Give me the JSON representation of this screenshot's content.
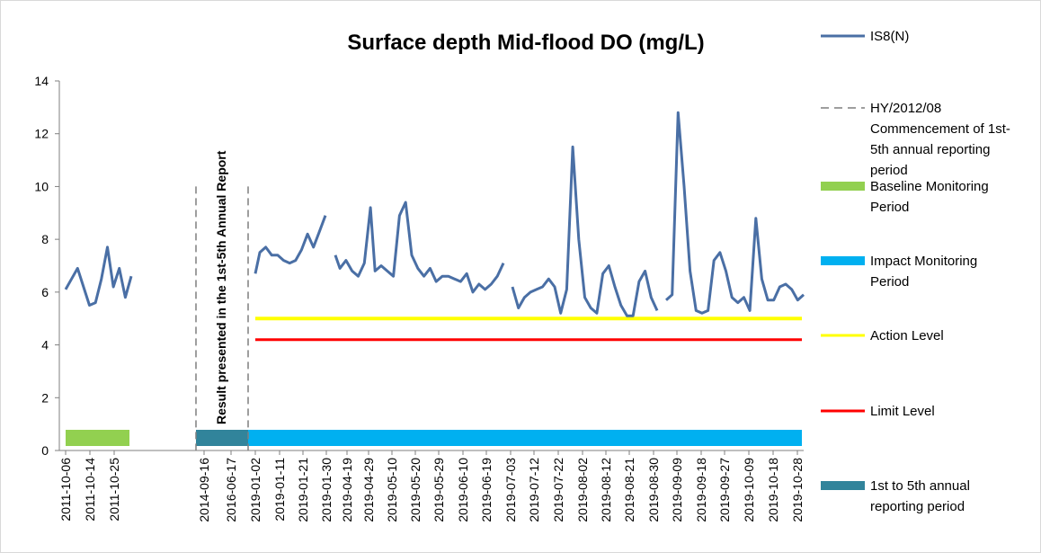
{
  "chart_data": {
    "type": "line",
    "title": "Surface depth Mid-flood DO (mg/L)",
    "xlabel": "",
    "ylabel": "",
    "ylim": [
      0,
      14
    ],
    "yticks": [
      0,
      2,
      4,
      6,
      8,
      10,
      12,
      14
    ],
    "categories": [
      "2011-10-06",
      "2011-10-14",
      "2011-10-25",
      "2014-09-16",
      "2016-06-17",
      "2019-01-02",
      "2019-01-11",
      "2019-01-21",
      "2019-01-30",
      "2019-04-19",
      "2019-04-29",
      "2019-05-10",
      "2019-05-20",
      "2019-05-29",
      "2019-06-10",
      "2019-06-19",
      "2019-07-03",
      "2019-07-12",
      "2019-07-22",
      "2019-08-02",
      "2019-08-12",
      "2019-08-21",
      "2019-08-30",
      "2019-09-09",
      "2019-09-18",
      "2019-09-27",
      "2019-10-09",
      "2019-10-18",
      "2019-10-28"
    ],
    "series": [
      {
        "name": "IS8(N)",
        "color": "#4a6fa5",
        "segments": [
          [
            [
              0,
              6.1
            ],
            [
              0.4,
              6.5
            ],
            [
              0.8,
              6.9
            ],
            [
              1.2,
              6.2
            ],
            [
              1.6,
              5.5
            ],
            [
              2.0,
              5.6
            ],
            [
              2.4,
              6.5
            ],
            [
              2.8,
              7.7
            ],
            [
              3.2,
              6.2
            ],
            [
              3.6,
              6.9
            ],
            [
              4.0,
              5.8
            ],
            [
              4.4,
              6.6
            ]
          ],
          [
            [
              11.5,
              6.7
            ],
            [
              11.8,
              7.5
            ],
            [
              12.2,
              7.7
            ],
            [
              12.6,
              7.4
            ],
            [
              13.0,
              7.4
            ],
            [
              13.4,
              7.2
            ],
            [
              13.8,
              7.1
            ],
            [
              14.2,
              7.2
            ],
            [
              14.6,
              7.6
            ],
            [
              15.0,
              8.2
            ],
            [
              15.4,
              7.7
            ],
            [
              15.8,
              8.3
            ],
            [
              16.2,
              8.9
            ]
          ],
          [
            [
              16.8,
              7.4
            ],
            [
              17.1,
              6.9
            ],
            [
              17.5,
              7.2
            ],
            [
              17.9,
              6.8
            ],
            [
              18.3,
              6.6
            ],
            [
              18.7,
              7.1
            ],
            [
              19.1,
              9.2
            ],
            [
              19.4,
              6.8
            ],
            [
              19.8,
              7.0
            ],
            [
              20.2,
              6.8
            ],
            [
              20.6,
              6.6
            ],
            [
              21.0,
              8.9
            ],
            [
              21.4,
              9.4
            ],
            [
              21.8,
              7.4
            ],
            [
              22.2,
              6.9
            ],
            [
              22.6,
              6.6
            ],
            [
              23.0,
              6.9
            ],
            [
              23.4,
              6.4
            ],
            [
              23.8,
              6.6
            ],
            [
              24.2,
              6.6
            ],
            [
              24.6,
              6.5
            ],
            [
              25.0,
              6.4
            ],
            [
              25.4,
              6.7
            ],
            [
              25.8,
              6.0
            ],
            [
              26.2,
              6.3
            ],
            [
              26.6,
              6.1
            ],
            [
              27.0,
              6.3
            ],
            [
              27.4,
              6.6
            ],
            [
              27.8,
              7.1
            ]
          ],
          [
            [
              28.6,
              6.2
            ],
            [
              29.0,
              5.4
            ],
            [
              29.4,
              5.8
            ],
            [
              29.8,
              6.0
            ],
            [
              30.2,
              6.1
            ],
            [
              30.6,
              6.2
            ],
            [
              31.0,
              6.5
            ],
            [
              31.4,
              6.2
            ],
            [
              31.8,
              5.2
            ],
            [
              32.2,
              6.1
            ],
            [
              32.6,
              11.5
            ],
            [
              33.0,
              8.0
            ],
            [
              33.4,
              5.8
            ],
            [
              33.8,
              5.4
            ],
            [
              34.2,
              5.2
            ],
            [
              34.6,
              6.7
            ],
            [
              35.0,
              7.0
            ],
            [
              35.4,
              6.2
            ],
            [
              35.8,
              5.5
            ],
            [
              36.2,
              5.1
            ],
            [
              36.6,
              5.1
            ],
            [
              37.0,
              6.4
            ],
            [
              37.4,
              6.8
            ],
            [
              37.8,
              5.8
            ],
            [
              38.2,
              5.3
            ]
          ],
          [
            [
              39.0,
              5.7
            ],
            [
              39.4,
              5.9
            ],
            [
              39.8,
              12.8
            ],
            [
              40.2,
              10.0
            ],
            [
              40.6,
              6.8
            ],
            [
              41.0,
              5.3
            ],
            [
              41.4,
              5.2
            ],
            [
              41.8,
              5.3
            ],
            [
              42.2,
              7.2
            ],
            [
              42.6,
              7.5
            ],
            [
              43.0,
              6.8
            ],
            [
              43.4,
              5.8
            ],
            [
              43.8,
              5.6
            ],
            [
              44.2,
              5.8
            ],
            [
              44.6,
              5.3
            ],
            [
              45.0,
              8.8
            ],
            [
              45.4,
              6.5
            ],
            [
              45.8,
              5.7
            ],
            [
              46.2,
              5.7
            ],
            [
              46.6,
              6.2
            ],
            [
              47.0,
              6.3
            ],
            [
              47.4,
              6.1
            ],
            [
              47.8,
              5.7
            ],
            [
              48.2,
              5.9
            ]
          ]
        ]
      }
    ],
    "action_level": 5.0,
    "limit_level": 4.2,
    "annotation": "Result presented in the 1st-5th Annual Report",
    "legend": {
      "placement": "right",
      "items": [
        {
          "label": "IS8(N)",
          "kind": "solid-line",
          "color": "#4a6fa5"
        },
        {
          "label": "HY/2012/08 Commencement of 1st-5th annual reporting period",
          "kind": "dashed-line",
          "color": "#7f7f7f"
        },
        {
          "label": "Baseline Monitoring Period",
          "kind": "bar",
          "color": "#92d050"
        },
        {
          "label": "Impact Monitoring Period",
          "kind": "bar",
          "color": "#00b0f0"
        },
        {
          "label": "Action Level",
          "kind": "line",
          "color": "#ffff00"
        },
        {
          "label": "Limit Level",
          "kind": "line",
          "color": "#ff0000"
        },
        {
          "label": "1st to 5th annual reporting period",
          "kind": "bar",
          "color": "#31849b"
        }
      ]
    },
    "periods": [
      {
        "name": "Baseline Monitoring Period",
        "from": "2011-10-06",
        "to": "2011-10-25",
        "color": "#92d050"
      },
      {
        "name": "1st to 5th annual reporting period",
        "from": "2014-09-16",
        "to": "2016-06-17",
        "color": "#31849b"
      },
      {
        "name": "Impact Monitoring Period",
        "from": "2019-01-02",
        "to": "2019-10-28",
        "color": "#00b0f0"
      }
    ]
  }
}
